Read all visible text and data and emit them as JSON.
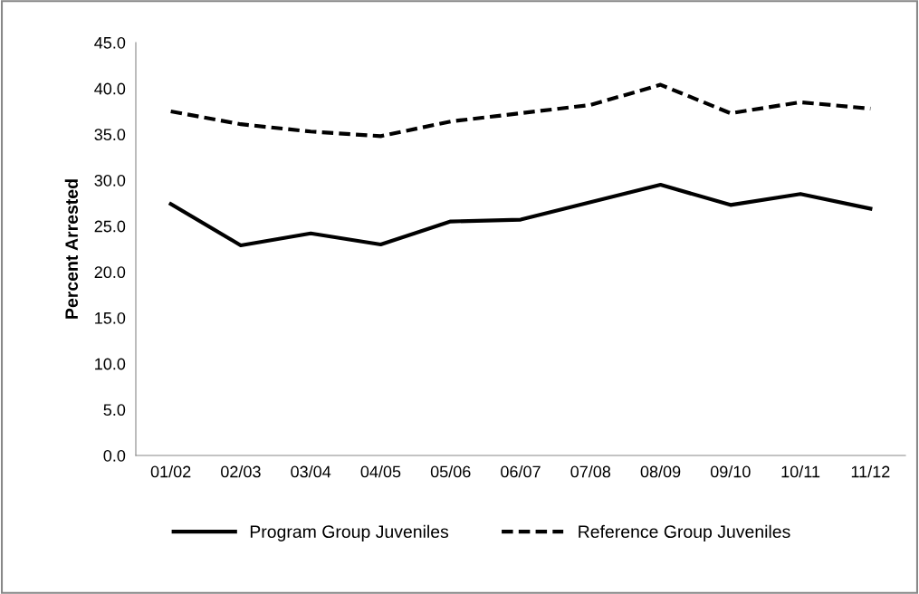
{
  "chart_data": {
    "type": "line",
    "ylabel": "Percent Arrested",
    "categories": [
      "01/02",
      "02/03",
      "03/04",
      "04/05",
      "05/06",
      "06/07",
      "07/08",
      "08/09",
      "09/10",
      "10/11",
      "11/12"
    ],
    "series": [
      {
        "name": "Program Group Juveniles",
        "color": "#000000",
        "line_style": "solid",
        "values": [
          27.4,
          22.9,
          24.2,
          23.0,
          25.5,
          25.7,
          27.6,
          29.5,
          27.3,
          28.5,
          26.9
        ]
      },
      {
        "name": "Reference Group Juveniles",
        "color": "#000000",
        "line_style": "dashed",
        "values": [
          37.5,
          36.1,
          35.3,
          34.8,
          36.4,
          37.3,
          38.2,
          40.4,
          37.3,
          38.5,
          37.8
        ]
      }
    ],
    "ylim": [
      0,
      45
    ],
    "yticks": [
      {
        "value": 0,
        "label": "0.0"
      },
      {
        "value": 5,
        "label": "5.0"
      },
      {
        "value": 10,
        "label": "10.0"
      },
      {
        "value": 15,
        "label": "15.0"
      },
      {
        "value": 20,
        "label": "20.0"
      },
      {
        "value": 25,
        "label": "25.0"
      },
      {
        "value": 30,
        "label": "30.0"
      },
      {
        "value": 35,
        "label": "35.0"
      },
      {
        "value": 40,
        "label": "40.0"
      },
      {
        "value": 45,
        "label": "45.0"
      }
    ],
    "grid": false,
    "legend": "bottom",
    "marker": "none"
  }
}
